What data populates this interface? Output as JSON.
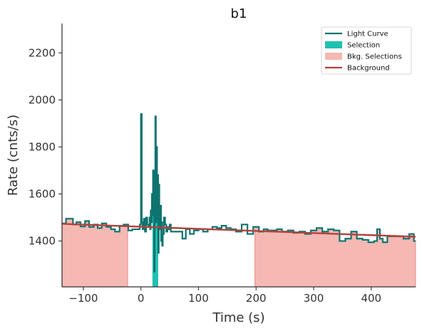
{
  "chart_data": {
    "type": "line",
    "title": "b1",
    "xlabel": "Time (s)",
    "ylabel": "Rate (cnts/s)",
    "xlim": [
      -137,
      477
    ],
    "ylim": [
      1205,
      2325
    ],
    "xticks": [
      -100,
      0,
      100,
      200,
      300,
      400
    ],
    "xtick_labels": [
      "−100",
      "0",
      "100",
      "200",
      "300",
      "400"
    ],
    "yticks": [
      1400,
      1600,
      1800,
      2000,
      2200
    ],
    "ytick_labels": [
      "1400",
      "1600",
      "1800",
      "2000",
      "2200"
    ],
    "grid": false,
    "legend_position": "top-right",
    "colors": {
      "light_curve": "#0e7470",
      "selection": "#1fc1b1",
      "bkg_fill": "#f5b8b3",
      "bkg_edge": "#e88e87",
      "background": "#b3413a"
    },
    "legend": [
      {
        "label": "Light Curve",
        "kind": "line",
        "color": "#0e7470"
      },
      {
        "label": "Selection",
        "kind": "patch",
        "color": "#1fc1b1"
      },
      {
        "label": "Bkg. Selections",
        "kind": "patch",
        "color": "#f5b8b3"
      },
      {
        "label": "Background",
        "kind": "line",
        "color": "#b3413a"
      }
    ],
    "background_model": {
      "x": [
        -137,
        477
      ],
      "y": [
        1473,
        1418
      ]
    },
    "bkg_selections": [
      [
        -137,
        -23
      ],
      [
        198,
        477
      ]
    ],
    "selection": [
      20,
      30
    ],
    "light_curve": {
      "x": [
        -137,
        -130,
        -118,
        -112,
        -105,
        -97,
        -90,
        -82,
        -75,
        -68,
        -60,
        -52,
        -45,
        -37,
        -30,
        -22,
        -15,
        -8,
        -2,
        0,
        1.5,
        3,
        5,
        7,
        9,
        11,
        13,
        15,
        16,
        17,
        18,
        19,
        20,
        21,
        22,
        23,
        24,
        25,
        26,
        27,
        28,
        29,
        30,
        31,
        32,
        33,
        34,
        35,
        36,
        37,
        38,
        40,
        42,
        44,
        46,
        48,
        50,
        52,
        55,
        58,
        62,
        67,
        72,
        78,
        85,
        92,
        100,
        108,
        116,
        124,
        132,
        140,
        148,
        156,
        165,
        175,
        185,
        195,
        205,
        213,
        220,
        228,
        236,
        245,
        255,
        265,
        275,
        285,
        295,
        305,
        315,
        325,
        335,
        345,
        355,
        365,
        375,
        385,
        395,
        405,
        410,
        415,
        420,
        428,
        436,
        446,
        456,
        466,
        474
      ],
      "y": [
        1475,
        1495,
        1470,
        1480,
        1462,
        1485,
        1460,
        1470,
        1455,
        1475,
        1460,
        1450,
        1440,
        1465,
        1470,
        1445,
        1450,
        1450,
        1470,
        1940,
        1480,
        1450,
        1495,
        1440,
        1500,
        1470,
        1460,
        1500,
        1450,
        1530,
        1480,
        1600,
        1510,
        1700,
        1560,
        1270,
        1700,
        1930,
        1480,
        1800,
        1490,
        1680,
        1350,
        1640,
        1470,
        1450,
        1550,
        1400,
        1480,
        1380,
        1430,
        1500,
        1470,
        1440,
        1460,
        1450,
        1470,
        1440,
        1440,
        1440,
        1440,
        1440,
        1410,
        1450,
        1430,
        1445,
        1450,
        1440,
        1450,
        1460,
        1455,
        1465,
        1455,
        1450,
        1440,
        1470,
        1430,
        1460,
        1440,
        1450,
        1445,
        1445,
        1450,
        1440,
        1445,
        1435,
        1440,
        1430,
        1445,
        1455,
        1440,
        1450,
        1445,
        1400,
        1410,
        1440,
        1410,
        1405,
        1395,
        1400,
        1450,
        1410,
        1395,
        1420,
        1420,
        1420,
        1410,
        1430,
        1400
      ]
    }
  }
}
